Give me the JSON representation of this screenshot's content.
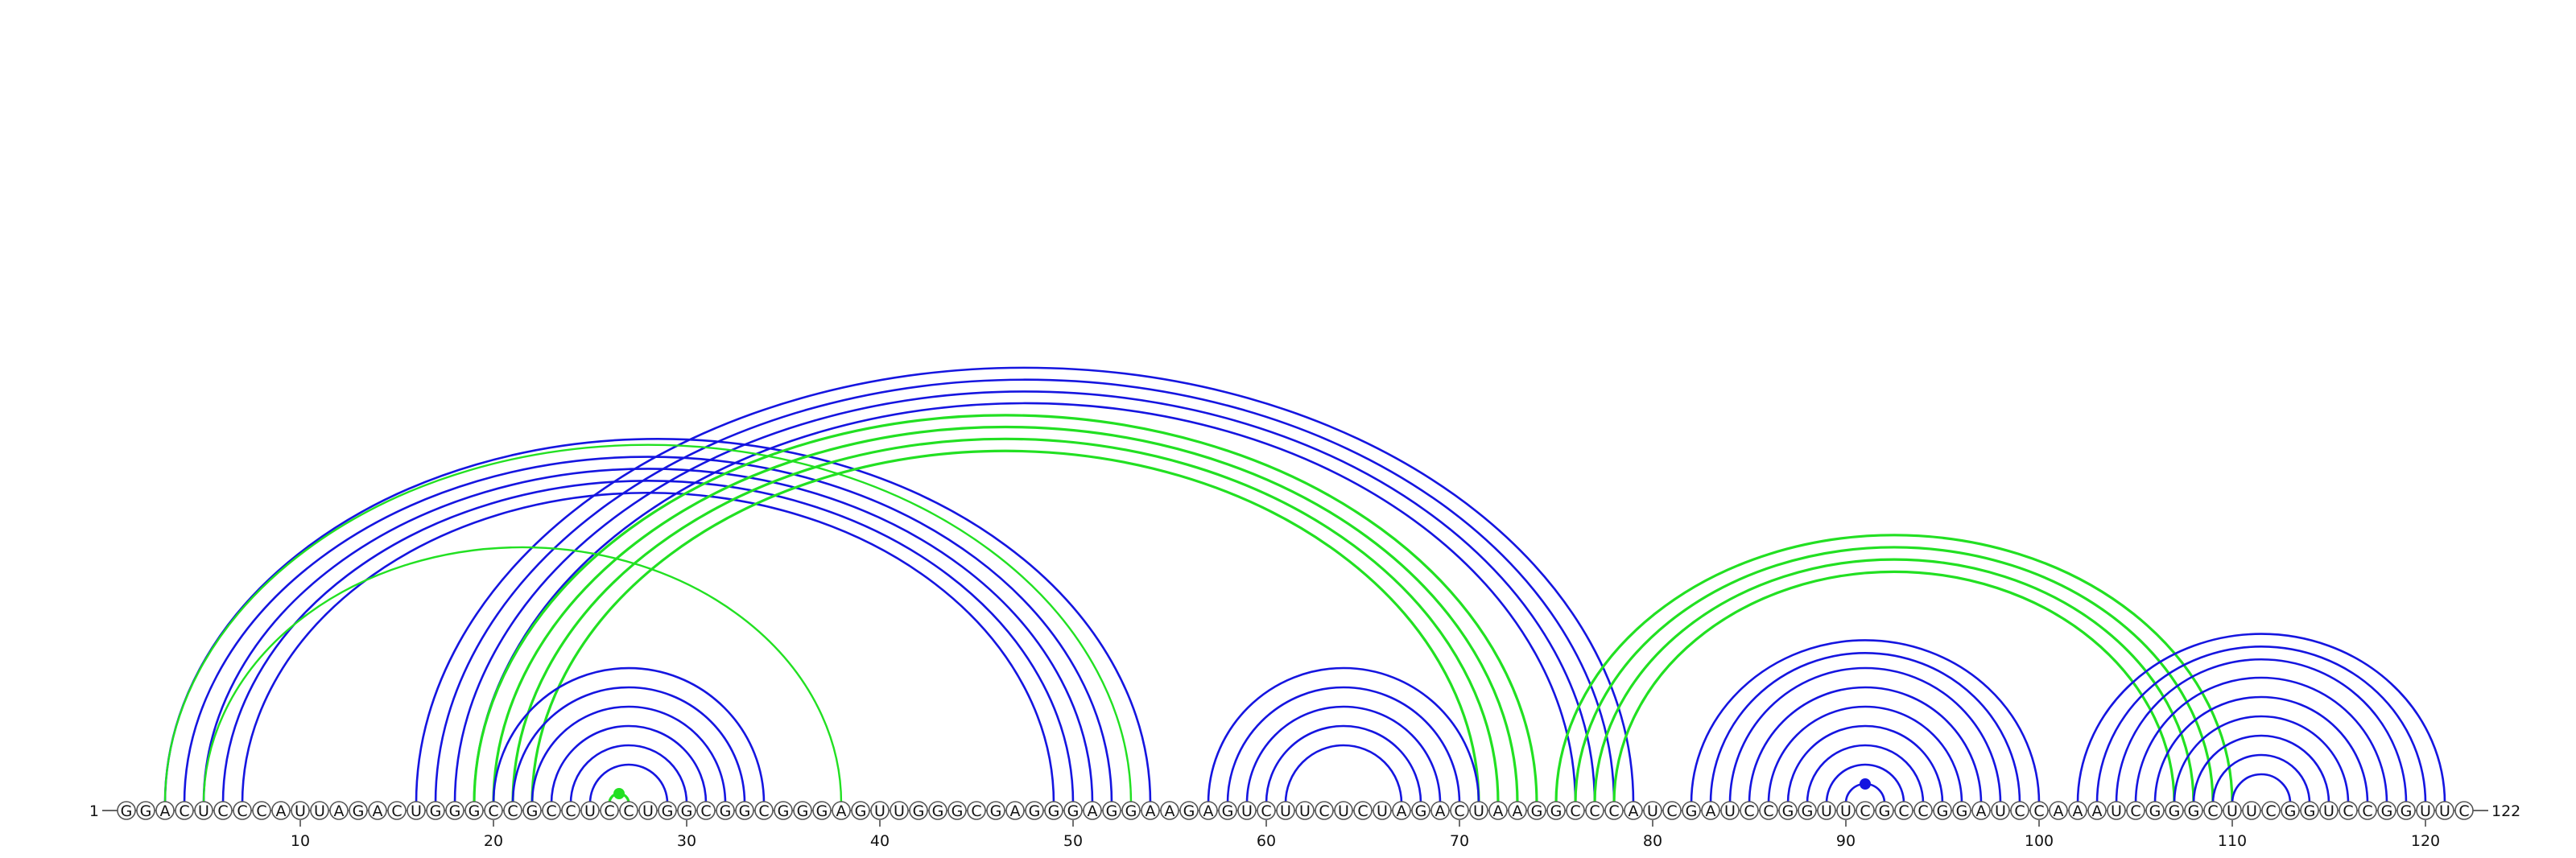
{
  "diagram": {
    "type": "rna-arc-diagram",
    "sequence": "GGACUCCCAUUAGACUGGGCCGCCUCCUGGCGGCGGGAGUUGGGCGAGGGAGGAAGAGUCUUCUCUAGACUAAGGCCCAUCGAUCCGGUUCGCCGGAUCCAAAUCGGGCUUCGGUCCGGUUC",
    "start_label": "1",
    "end_label": "122",
    "position_ticks": [
      "10",
      "20",
      "30",
      "40",
      "50",
      "60",
      "70",
      "80",
      "90",
      "100",
      "110",
      "120"
    ],
    "colors": {
      "blue": "#1515e0",
      "green": "#22e022"
    },
    "arc_groups": [
      {
        "name": "blue-long-hairpin",
        "color": "blue",
        "pairs": [
          [
            3,
            54
          ],
          [
            4,
            52
          ],
          [
            5,
            51
          ],
          [
            6,
            50
          ],
          [
            7,
            49
          ]
        ]
      },
      {
        "name": "blue-pseudoknot",
        "color": "blue",
        "pairs": [
          [
            16,
            79
          ],
          [
            17,
            78
          ],
          [
            18,
            77
          ],
          [
            19,
            76
          ]
        ]
      },
      {
        "name": "green-pseudoknot",
        "color": "green",
        "pairs": [
          [
            19,
            74
          ],
          [
            20,
            73
          ],
          [
            21,
            72
          ],
          [
            22,
            71
          ]
        ]
      },
      {
        "name": "blue-hairpin-1",
        "color": "blue",
        "pairs": [
          [
            20,
            34
          ],
          [
            21,
            33
          ],
          [
            22,
            32
          ],
          [
            23,
            31
          ],
          [
            24,
            30
          ],
          [
            25,
            29
          ]
        ]
      },
      {
        "name": "green-outer",
        "color": "green",
        "thin": true,
        "pairs": [
          [
            3,
            53
          ],
          [
            5,
            38
          ]
        ]
      },
      {
        "name": "green-hairpin-1",
        "color": "green",
        "pairs": [
          [
            26,
            27
          ]
        ]
      },
      {
        "name": "blue-hairpin-2",
        "color": "blue",
        "pairs": [
          [
            57,
            71
          ],
          [
            58,
            70
          ],
          [
            59,
            69
          ],
          [
            60,
            68
          ],
          [
            61,
            67
          ]
        ]
      },
      {
        "name": "green-pseudoknot-2",
        "color": "green",
        "pairs": [
          [
            75,
            110
          ],
          [
            76,
            109
          ],
          [
            77,
            108
          ],
          [
            78,
            107
          ]
        ]
      },
      {
        "name": "blue-hairpin-3",
        "color": "blue",
        "pairs": [
          [
            82,
            100
          ],
          [
            83,
            99
          ],
          [
            84,
            98
          ],
          [
            85,
            97
          ],
          [
            86,
            96
          ],
          [
            87,
            95
          ],
          [
            88,
            94
          ],
          [
            89,
            93
          ],
          [
            90,
            92
          ]
        ]
      },
      {
        "name": "blue-hairpin-4",
        "color": "blue",
        "pairs": [
          [
            102,
            121
          ],
          [
            103,
            120
          ],
          [
            104,
            119
          ],
          [
            105,
            118
          ],
          [
            106,
            117
          ],
          [
            107,
            116
          ],
          [
            108,
            115
          ],
          [
            109,
            114
          ],
          [
            110,
            113
          ]
        ]
      }
    ]
  }
}
